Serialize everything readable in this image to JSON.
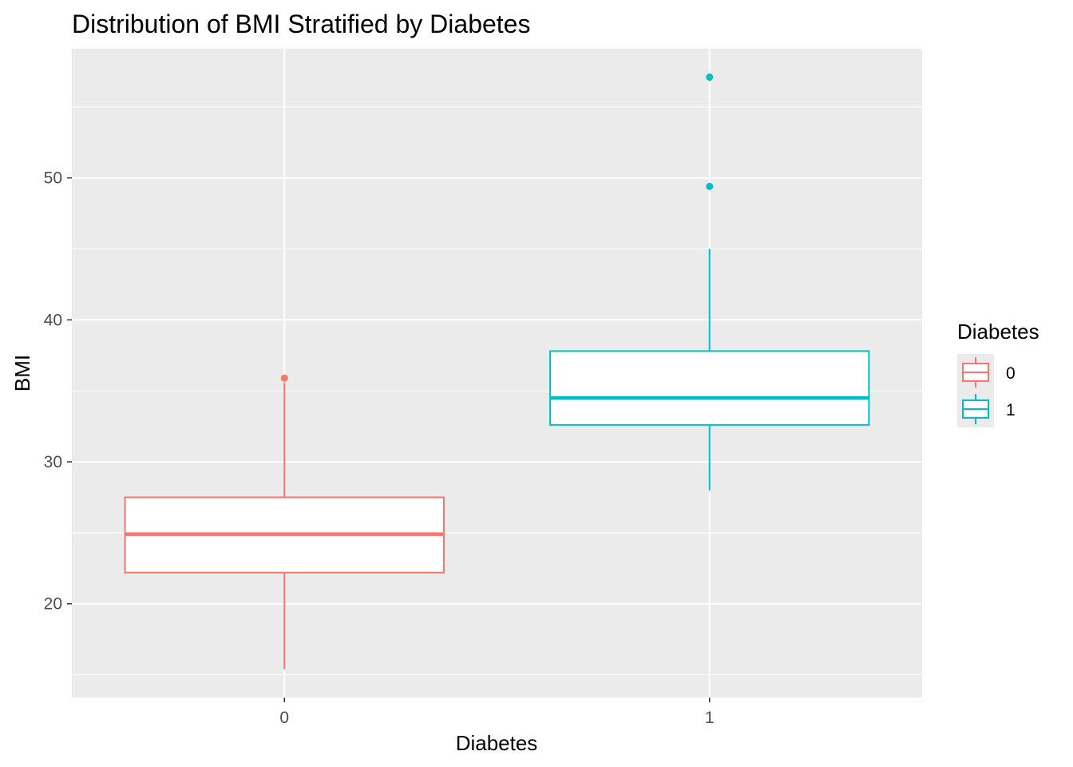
{
  "chart_data": {
    "type": "boxplot",
    "title": "Distribution of BMI Stratified by Diabetes",
    "xlabel": "Diabetes",
    "ylabel": "BMI",
    "categories": [
      "0",
      "1"
    ],
    "ylim": [
      13.4,
      59.1
    ],
    "yticks": [
      20,
      30,
      40,
      50
    ],
    "grid": true,
    "legend": {
      "title": "Diabetes",
      "position": "right",
      "entries": [
        "0",
        "1"
      ]
    },
    "colors": {
      "0": "#F8766D",
      "1": "#00BFC4",
      "panel": "#EBEBEB",
      "grid": "#FFFFFF"
    },
    "boxes": [
      {
        "category": "0",
        "whisker_low": 15.4,
        "q1": 22.2,
        "median": 24.9,
        "q3": 27.5,
        "whisker_high": 35.6,
        "outliers": [
          35.9
        ]
      },
      {
        "category": "1",
        "whisker_low": 28.0,
        "q1": 32.6,
        "median": 34.5,
        "q3": 37.8,
        "whisker_high": 45.0,
        "outliers": [
          49.4,
          57.1
        ]
      }
    ]
  }
}
